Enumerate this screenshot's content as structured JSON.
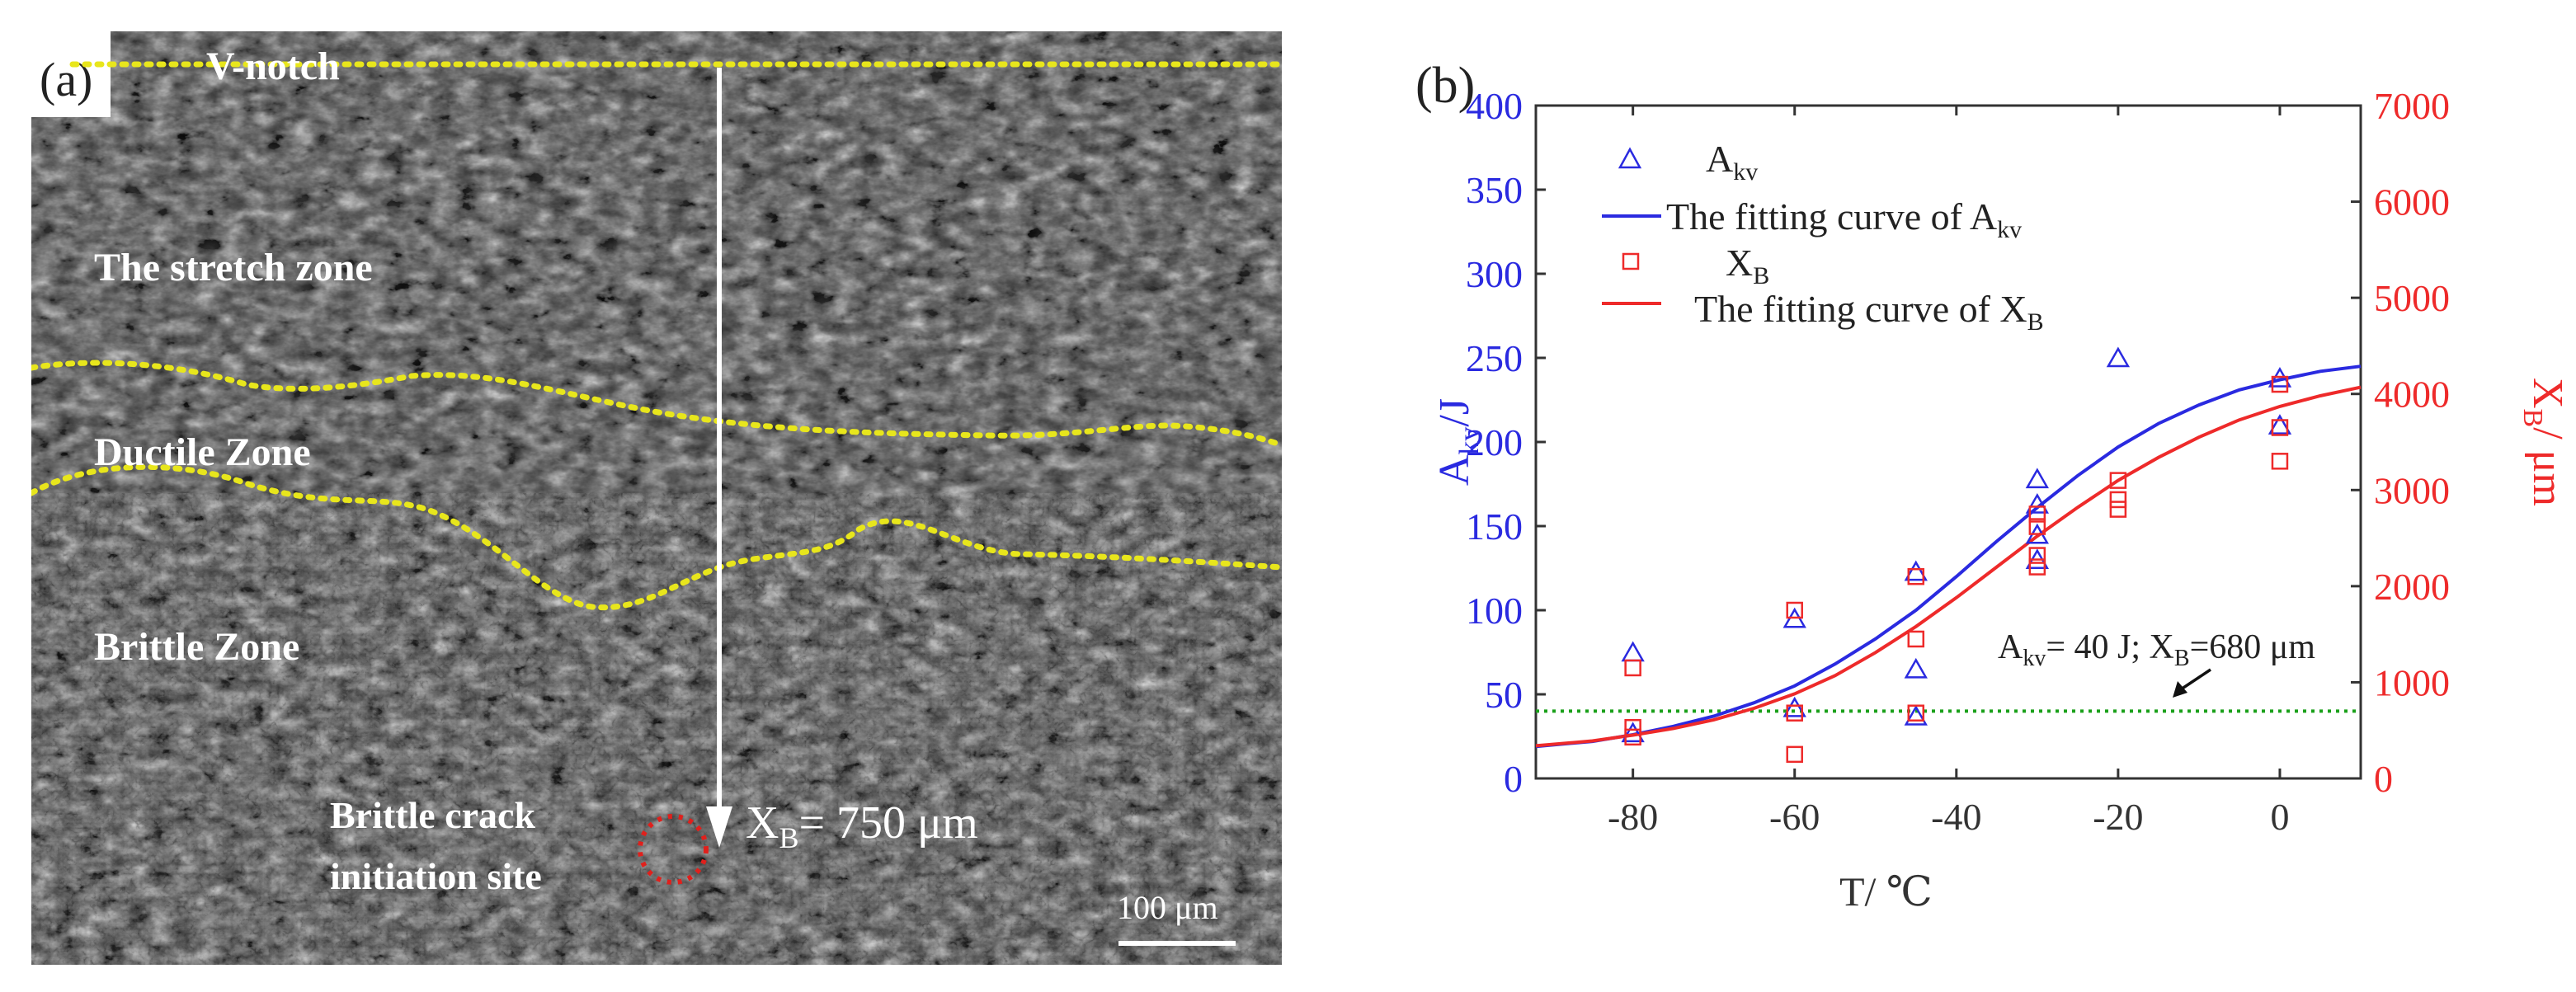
{
  "panel_a": {
    "label": "(a)",
    "v_notch": "V-notch",
    "stretch_zone": "The stretch zone",
    "ductile_zone": "Ductile Zone",
    "brittle_zone": "Brittle Zone",
    "crack_site_line1": "Brittle crack",
    "crack_site_line2": "initiation site",
    "xb_symbol": "X",
    "xb_sub": "B",
    "xb_value": "= 750 μm",
    "scale_bar": "100 μm",
    "colors": {
      "boundary": "#e8e61c",
      "crack_circle": "#e0201c",
      "arrow": "#ffffff"
    }
  },
  "chart_data": {
    "type": "scatter",
    "panel_label": "(b)",
    "xlabel": "T/ ℃",
    "ylabel_left": {
      "main": "A",
      "sub": "kv",
      "tail": "/J"
    },
    "ylabel_right": {
      "main": "X",
      "sub": "B",
      "tail": "/ μm"
    },
    "xlim": [
      -92,
      10
    ],
    "ylim_left": [
      0,
      400
    ],
    "ylim_right": [
      0,
      7000
    ],
    "x_ticks": [
      -80,
      -60,
      -40,
      -20,
      0
    ],
    "y_ticks_left": [
      0,
      50,
      100,
      150,
      200,
      250,
      300,
      350,
      400
    ],
    "y_ticks_right": [
      0,
      1000,
      2000,
      3000,
      4000,
      5000,
      6000,
      7000
    ],
    "legend": [
      {
        "main": "A",
        "sub": "kv",
        "tail": ""
      },
      {
        "main": "The fitting curve of A",
        "sub": "kv",
        "tail": ""
      },
      {
        "main": "X",
        "sub": "B",
        "tail": ""
      },
      {
        "main": "The fitting curve of X",
        "sub": "B",
        "tail": ""
      }
    ],
    "annotation": {
      "a": "A",
      "a_sub": "kv",
      "mid": "= 40 J; X",
      "x_sub": "B",
      "end": "=680 μm"
    },
    "threshold_line_left": 40,
    "colors": {
      "akv": "#2a2ae0",
      "xb": "#ee2a2a",
      "threshold": "#1aa01a"
    },
    "series": [
      {
        "name": "A_kv",
        "axis": "left",
        "marker": "triangle",
        "x": [
          -80,
          -80,
          -60,
          -60,
          -45,
          -45,
          -45,
          -30,
          -30,
          -30,
          -30,
          -20,
          0,
          0
        ],
        "y": [
          75,
          27,
          95,
          42,
          123,
          65,
          37,
          178,
          163,
          145,
          130,
          250,
          238,
          210
        ]
      },
      {
        "name": "X_B",
        "axis": "right",
        "marker": "square",
        "x": [
          -80,
          -80,
          -80,
          -60,
          -60,
          -60,
          -45,
          -45,
          -45,
          -30,
          -30,
          -30,
          -30,
          -20,
          -20,
          -20,
          0,
          0,
          0
        ],
        "y": [
          1150,
          530,
          430,
          1750,
          680,
          250,
          2100,
          1450,
          680,
          2750,
          2620,
          2320,
          2200,
          3100,
          2900,
          2800,
          4100,
          3650,
          3300
        ]
      },
      {
        "name": "The fitting curve of A_kv",
        "axis": "left",
        "type": "line",
        "x": [
          -92,
          -85,
          -80,
          -75,
          -70,
          -65,
          -60,
          -55,
          -50,
          -45,
          -40,
          -35,
          -30,
          -25,
          -20,
          -15,
          -10,
          -5,
          0,
          5,
          10
        ],
        "y": [
          19,
          22,
          26,
          31,
          37,
          45,
          55,
          68,
          83,
          100,
          120,
          141,
          161,
          180,
          197,
          211,
          222,
          231,
          237,
          242,
          245
        ]
      },
      {
        "name": "The fitting curve of X_B",
        "axis": "right",
        "type": "line",
        "x": [
          -92,
          -85,
          -80,
          -75,
          -70,
          -65,
          -60,
          -55,
          -50,
          -45,
          -40,
          -35,
          -30,
          -25,
          -20,
          -15,
          -10,
          -5,
          0,
          5,
          10
        ],
        "y": [
          340,
          390,
          450,
          520,
          610,
          730,
          880,
          1070,
          1310,
          1580,
          1880,
          2200,
          2520,
          2820,
          3100,
          3340,
          3550,
          3730,
          3870,
          3980,
          4070
        ]
      }
    ]
  }
}
